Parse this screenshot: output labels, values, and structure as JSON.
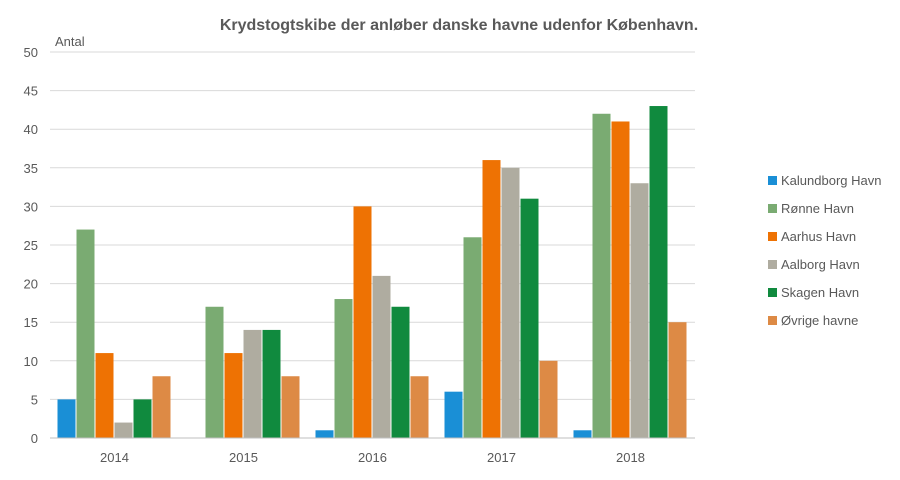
{
  "chart_data": {
    "type": "bar",
    "title": "Krydstogtskibe der anløber danske havne udenfor København.",
    "ylabel": "Antal",
    "xlabel": "",
    "categories": [
      "2014",
      "2015",
      "2016",
      "2017",
      "2018"
    ],
    "ylim": [
      0,
      50
    ],
    "yticks": [
      0,
      5,
      10,
      15,
      20,
      25,
      30,
      35,
      40,
      45,
      50
    ],
    "grid": true,
    "legend_position": "right",
    "series": [
      {
        "name": "Kalundborg Havn",
        "color": "#1a8fd6",
        "values": [
          5,
          0,
          1,
          6,
          1
        ]
      },
      {
        "name": "Rønne Havn",
        "color": "#7aab72",
        "values": [
          27,
          17,
          18,
          26,
          42
        ]
      },
      {
        "name": "Aarhus Havn",
        "color": "#ee7203",
        "values": [
          11,
          11,
          30,
          36,
          41
        ]
      },
      {
        "name": "Aalborg Havn",
        "color": "#afaca0",
        "values": [
          2,
          14,
          21,
          35,
          33
        ]
      },
      {
        "name": "Skagen Havn",
        "color": "#108a3e",
        "values": [
          5,
          14,
          17,
          31,
          43
        ]
      },
      {
        "name": "Øvrige havne",
        "color": "#dd8a45",
        "values": [
          8,
          8,
          8,
          10,
          15
        ]
      }
    ]
  }
}
